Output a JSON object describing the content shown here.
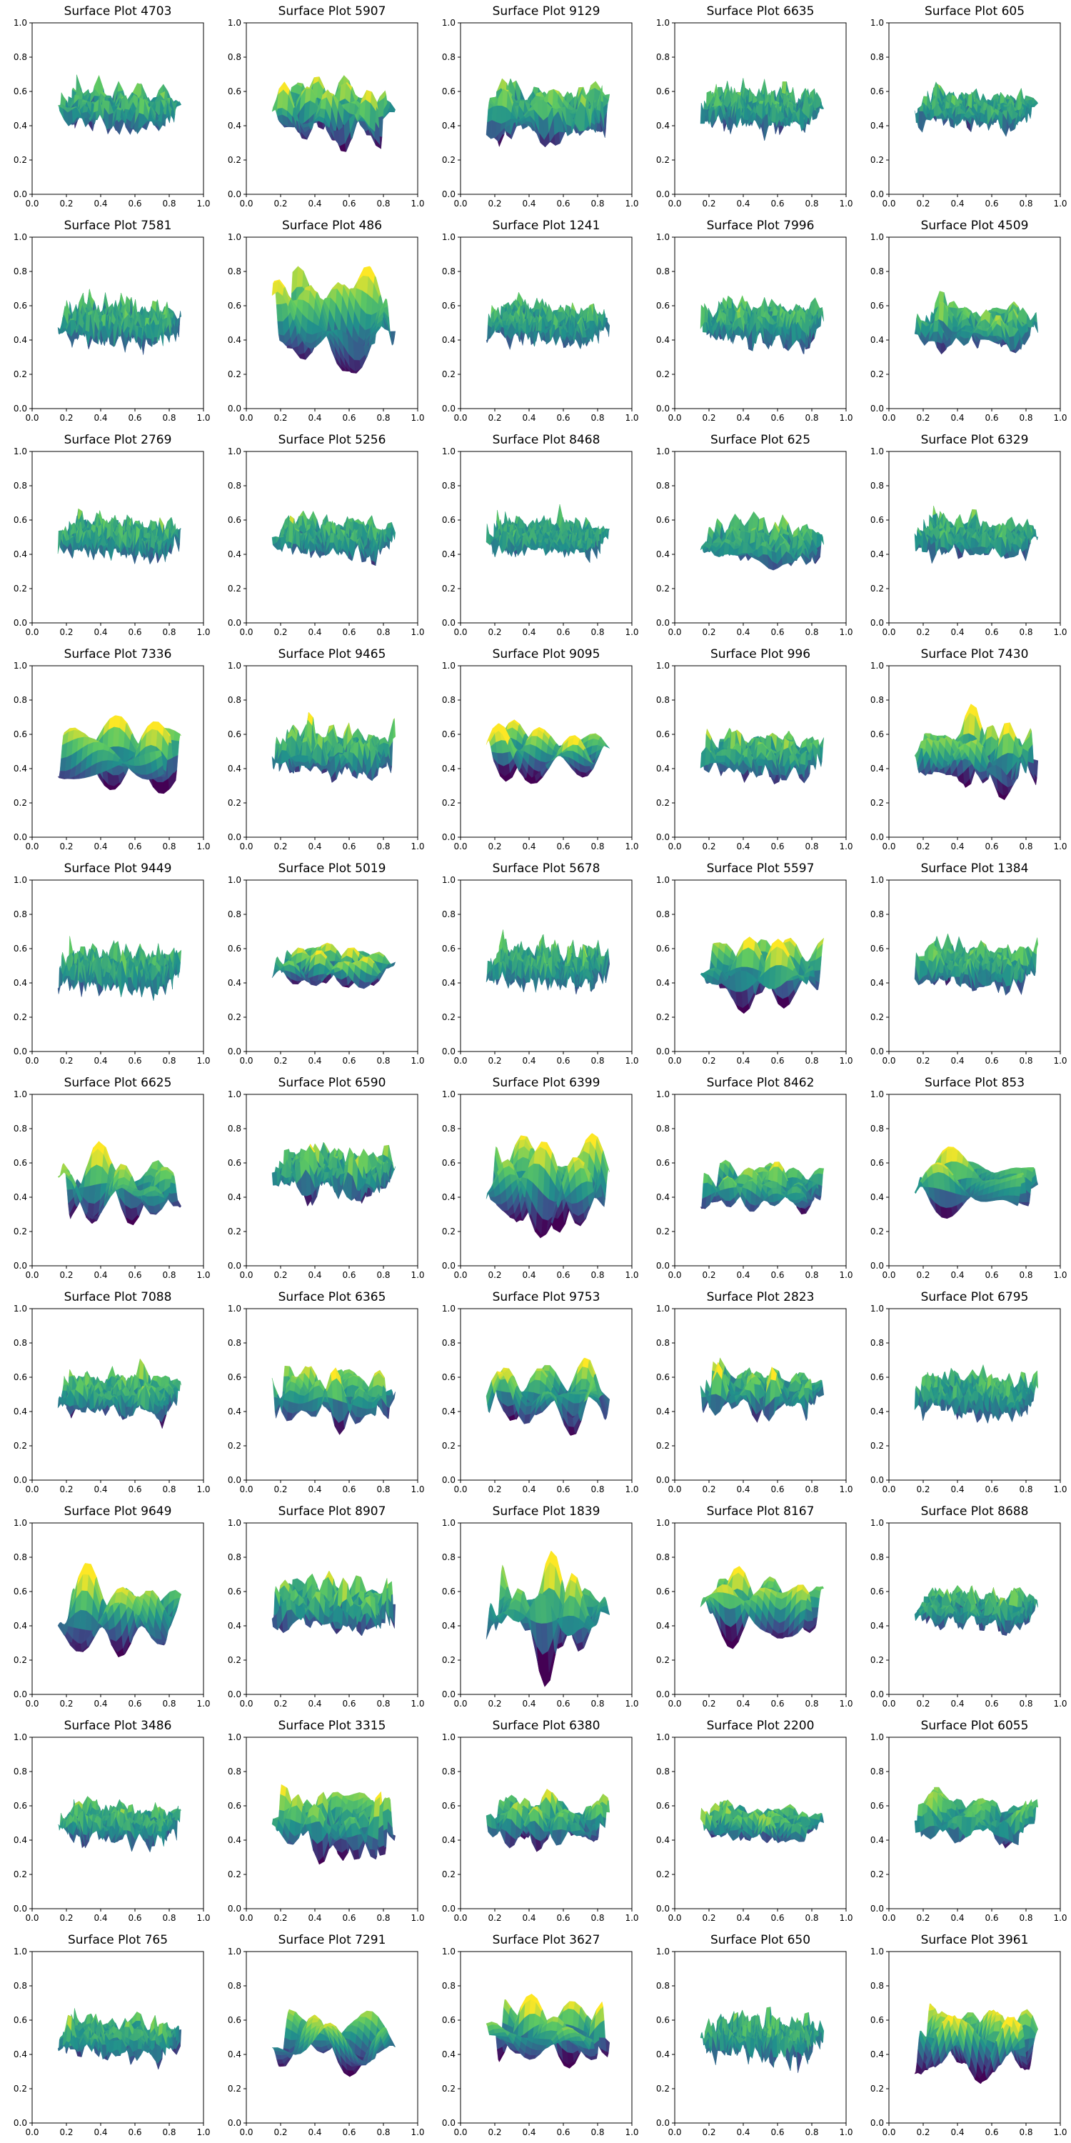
{
  "figure": {
    "background": "#ffffff"
  },
  "colormap": {
    "name": "viridis",
    "stops": [
      "#440154",
      "#3b528b",
      "#21918c",
      "#5ec962",
      "#fde725"
    ]
  },
  "axis": {
    "xlim": [
      0.0,
      1.0
    ],
    "ylim": [
      0.0,
      1.0
    ],
    "xticks": [
      "0.0",
      "0.2",
      "0.4",
      "0.6",
      "0.8",
      "1.0"
    ],
    "yticks": [
      "0.0",
      "0.2",
      "0.4",
      "0.6",
      "0.8",
      "1.0"
    ]
  },
  "chart_data": [
    {
      "type": "surface",
      "title": "Surface Plot 4703",
      "center": 0.5,
      "amplitude": 0.15,
      "roughness": 0.55,
      "seed": 4703
    },
    {
      "type": "surface",
      "title": "Surface Plot 5907",
      "center": 0.48,
      "amplitude": 0.18,
      "roughness": 0.2,
      "seed": 5907
    },
    {
      "type": "surface",
      "title": "Surface Plot 9129",
      "center": 0.48,
      "amplitude": 0.2,
      "roughness": 0.4,
      "seed": 9129
    },
    {
      "type": "surface",
      "title": "Surface Plot 6635",
      "center": 0.5,
      "amplitude": 0.16,
      "roughness": 0.85,
      "seed": 6635
    },
    {
      "type": "surface",
      "title": "Surface Plot 605",
      "center": 0.5,
      "amplitude": 0.13,
      "roughness": 0.9,
      "seed": 605
    },
    {
      "type": "surface",
      "title": "Surface Plot 7581",
      "center": 0.5,
      "amplitude": 0.17,
      "roughness": 0.8,
      "seed": 7581
    },
    {
      "type": "surface",
      "title": "Surface Plot 486",
      "center": 0.5,
      "amplitude": 0.28,
      "roughness": 0.1,
      "seed": 486
    },
    {
      "type": "surface",
      "title": "Surface Plot 1241",
      "center": 0.5,
      "amplitude": 0.17,
      "roughness": 0.85,
      "seed": 1241
    },
    {
      "type": "surface",
      "title": "Surface Plot 7996",
      "center": 0.5,
      "amplitude": 0.18,
      "roughness": 0.85,
      "seed": 7996
    },
    {
      "type": "surface",
      "title": "Surface Plot 4509",
      "center": 0.48,
      "amplitude": 0.16,
      "roughness": 0.5,
      "seed": 4509
    },
    {
      "type": "surface",
      "title": "Surface Plot 2769",
      "center": 0.5,
      "amplitude": 0.15,
      "roughness": 0.9,
      "seed": 2769
    },
    {
      "type": "surface",
      "title": "Surface Plot 5256",
      "center": 0.5,
      "amplitude": 0.16,
      "roughness": 0.9,
      "seed": 5256
    },
    {
      "type": "surface",
      "title": "Surface Plot 8468",
      "center": 0.5,
      "amplitude": 0.14,
      "roughness": 0.85,
      "seed": 8468
    },
    {
      "type": "surface",
      "title": "Surface Plot 625",
      "center": 0.46,
      "amplitude": 0.17,
      "roughness": 0.45,
      "seed": 625
    },
    {
      "type": "surface",
      "title": "Surface Plot 6329",
      "center": 0.5,
      "amplitude": 0.15,
      "roughness": 0.7,
      "seed": 6329
    },
    {
      "type": "surface",
      "title": "Surface Plot 7336",
      "center": 0.48,
      "amplitude": 0.18,
      "roughness": 0.12,
      "seed": 7336
    },
    {
      "type": "surface",
      "title": "Surface Plot 9465",
      "center": 0.5,
      "amplitude": 0.18,
      "roughness": 0.5,
      "seed": 9465
    },
    {
      "type": "surface",
      "title": "Surface Plot 9095",
      "center": 0.5,
      "amplitude": 0.13,
      "roughness": 0.15,
      "seed": 9095
    },
    {
      "type": "surface",
      "title": "Surface Plot 996",
      "center": 0.48,
      "amplitude": 0.16,
      "roughness": 0.45,
      "seed": 996
    },
    {
      "type": "surface",
      "title": "Surface Plot 7430",
      "center": 0.48,
      "amplitude": 0.18,
      "roughness": 0.15,
      "seed": 7430
    },
    {
      "type": "surface",
      "title": "Surface Plot 9449",
      "center": 0.48,
      "amplitude": 0.18,
      "roughness": 0.85,
      "seed": 9449
    },
    {
      "type": "surface",
      "title": "Surface Plot 5019",
      "center": 0.5,
      "amplitude": 0.1,
      "roughness": 0.15,
      "seed": 5019
    },
    {
      "type": "surface",
      "title": "Surface Plot 5678",
      "center": 0.5,
      "amplitude": 0.18,
      "roughness": 0.9,
      "seed": 5678
    },
    {
      "type": "surface",
      "title": "Surface Plot 5597",
      "center": 0.47,
      "amplitude": 0.18,
      "roughness": 0.08,
      "seed": 5597
    },
    {
      "type": "surface",
      "title": "Surface Plot 1384",
      "center": 0.5,
      "amplitude": 0.17,
      "roughness": 0.8,
      "seed": 1384
    },
    {
      "type": "surface",
      "title": "Surface Plot 6625",
      "center": 0.45,
      "amplitude": 0.2,
      "roughness": 0.08,
      "seed": 6625
    },
    {
      "type": "surface",
      "title": "Surface Plot 6590",
      "center": 0.55,
      "amplitude": 0.16,
      "roughness": 0.45,
      "seed": 6590
    },
    {
      "type": "surface",
      "title": "Surface Plot 6399",
      "center": 0.48,
      "amplitude": 0.24,
      "roughness": 0.1,
      "seed": 6399
    },
    {
      "type": "surface",
      "title": "Surface Plot 8462",
      "center": 0.46,
      "amplitude": 0.15,
      "roughness": 0.5,
      "seed": 8462
    },
    {
      "type": "surface",
      "title": "Surface Plot 853",
      "center": 0.48,
      "amplitude": 0.18,
      "roughness": 0.1,
      "seed": 853
    },
    {
      "type": "surface",
      "title": "Surface Plot 7088",
      "center": 0.5,
      "amplitude": 0.16,
      "roughness": 0.85,
      "seed": 7088
    },
    {
      "type": "surface",
      "title": "Surface Plot 6365",
      "center": 0.5,
      "amplitude": 0.18,
      "roughness": 0.35,
      "seed": 6365
    },
    {
      "type": "surface",
      "title": "Surface Plot 9753",
      "center": 0.5,
      "amplitude": 0.18,
      "roughness": 0.15,
      "seed": 9753
    },
    {
      "type": "surface",
      "title": "Surface Plot 2823",
      "center": 0.52,
      "amplitude": 0.15,
      "roughness": 0.35,
      "seed": 2823
    },
    {
      "type": "surface",
      "title": "Surface Plot 6795",
      "center": 0.5,
      "amplitude": 0.17,
      "roughness": 0.9,
      "seed": 6795
    },
    {
      "type": "surface",
      "title": "Surface Plot 9649",
      "center": 0.47,
      "amplitude": 0.22,
      "roughness": 0.08,
      "seed": 9649
    },
    {
      "type": "surface",
      "title": "Surface Plot 8907",
      "center": 0.52,
      "amplitude": 0.17,
      "roughness": 0.45,
      "seed": 8907
    },
    {
      "type": "surface",
      "title": "Surface Plot 1839",
      "center": 0.48,
      "amplitude": 0.26,
      "roughness": 0.1,
      "seed": 1839
    },
    {
      "type": "surface",
      "title": "Surface Plot 8167",
      "center": 0.52,
      "amplitude": 0.17,
      "roughness": 0.1,
      "seed": 8167
    },
    {
      "type": "surface",
      "title": "Surface Plot 8688",
      "center": 0.5,
      "amplitude": 0.15,
      "roughness": 0.6,
      "seed": 8688
    },
    {
      "type": "surface",
      "title": "Surface Plot 3486",
      "center": 0.5,
      "amplitude": 0.15,
      "roughness": 0.9,
      "seed": 3486
    },
    {
      "type": "surface",
      "title": "Surface Plot 3315",
      "center": 0.5,
      "amplitude": 0.2,
      "roughness": 0.25,
      "seed": 3315
    },
    {
      "type": "surface",
      "title": "Surface Plot 6380",
      "center": 0.52,
      "amplitude": 0.15,
      "roughness": 0.4,
      "seed": 6380
    },
    {
      "type": "surface",
      "title": "Surface Plot 2200",
      "center": 0.5,
      "amplitude": 0.11,
      "roughness": 0.4,
      "seed": 2200
    },
    {
      "type": "surface",
      "title": "Surface Plot 6055",
      "center": 0.52,
      "amplitude": 0.18,
      "roughness": 0.4,
      "seed": 6055
    },
    {
      "type": "surface",
      "title": "Surface Plot 765",
      "center": 0.5,
      "amplitude": 0.16,
      "roughness": 0.85,
      "seed": 765
    },
    {
      "type": "surface",
      "title": "Surface Plot 7291",
      "center": 0.48,
      "amplitude": 0.18,
      "roughness": 0.08,
      "seed": 7291
    },
    {
      "type": "surface",
      "title": "Surface Plot 3627",
      "center": 0.52,
      "amplitude": 0.16,
      "roughness": 0.15,
      "seed": 3627
    },
    {
      "type": "surface",
      "title": "Surface Plot 650",
      "center": 0.5,
      "amplitude": 0.16,
      "roughness": 0.95,
      "seed": 650
    },
    {
      "type": "surface",
      "title": "Surface Plot 3961",
      "center": 0.48,
      "amplitude": 0.18,
      "roughness": 0.12,
      "seed": 3961
    }
  ]
}
